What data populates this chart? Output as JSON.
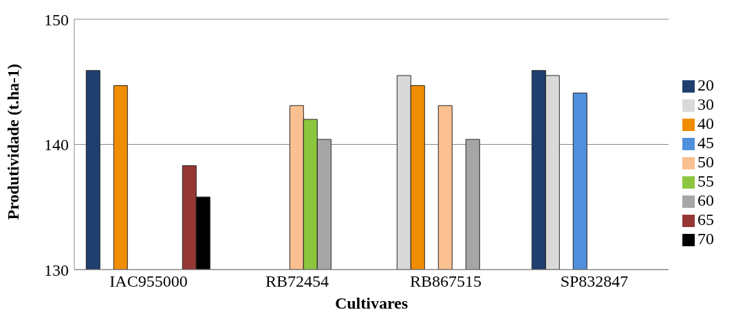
{
  "chart_data": {
    "type": "bar",
    "xlabel": "Cultivares",
    "ylabel": "Produtividade (t.ha-1)",
    "categories": [
      "IAC955000",
      "RB72454",
      "RB867515",
      "SP832847"
    ],
    "series": [
      {
        "name": "20",
        "color": "#1f3f6e",
        "values": [
          145.9,
          null,
          null,
          145.9
        ]
      },
      {
        "name": "30",
        "color": "#d9d9d9",
        "values": [
          null,
          null,
          145.5,
          145.5
        ]
      },
      {
        "name": "40",
        "color": "#f08c00",
        "values": [
          144.7,
          null,
          144.7,
          null
        ]
      },
      {
        "name": "45",
        "color": "#4f8fdc",
        "values": [
          null,
          null,
          null,
          144.1
        ]
      },
      {
        "name": "50",
        "color": "#fac090",
        "values": [
          null,
          143.1,
          143.1,
          null
        ]
      },
      {
        "name": "55",
        "color": "#8cc63e",
        "values": [
          null,
          142.0,
          null,
          null
        ]
      },
      {
        "name": "60",
        "color": "#a6a6a6",
        "values": [
          null,
          140.4,
          140.4,
          null
        ]
      },
      {
        "name": "65",
        "color": "#953735",
        "values": [
          138.3,
          null,
          null,
          null
        ]
      },
      {
        "name": "70",
        "color": "#000000",
        "values": [
          135.8,
          null,
          null,
          null
        ]
      }
    ],
    "ylim": [
      130,
      150
    ],
    "yticks": [
      130,
      140,
      150
    ],
    "grid": "y",
    "legend": "right"
  }
}
